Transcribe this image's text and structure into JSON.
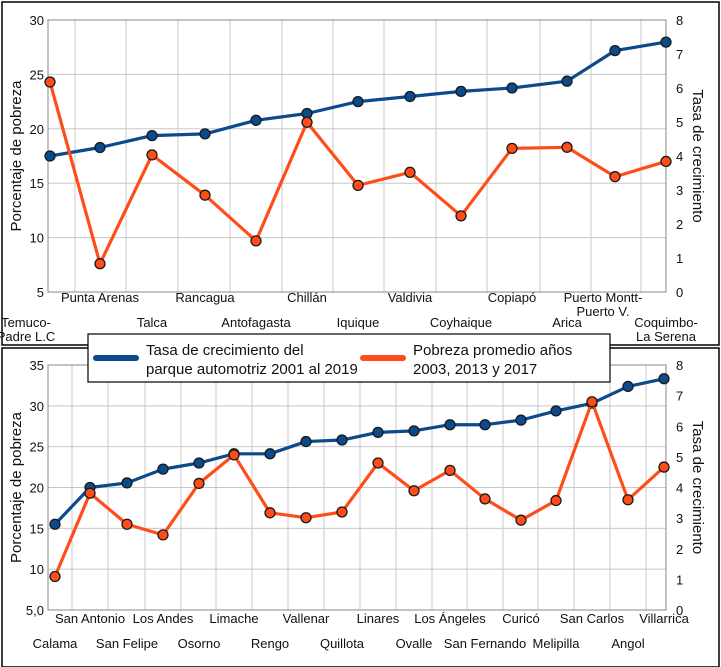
{
  "colors": {
    "growth": "#0b4a8b",
    "poverty": "#ff4d1a",
    "grid": "#c8c8c8",
    "frame": "#000000"
  },
  "legend": {
    "placement": "center-middle",
    "items": [
      {
        "label_line1": "Tasa de crecimiento del",
        "label_line2": "parque automotriz 2001 al 2019",
        "color": "#0b4a8b"
      },
      {
        "label_line1": "Pobreza promedio años",
        "label_line2": "2003, 2013 y 2017",
        "color": "#ff4d1a"
      }
    ]
  },
  "chart_data": [
    {
      "type": "line",
      "ylabel": "Porcentaje de pobreza",
      "ylabel_right": "Tasa de crecimiento",
      "ylim": [
        5,
        30
      ],
      "yticks": [
        "5",
        "10",
        "15",
        "20",
        "25",
        "30"
      ],
      "ylim_right": [
        0,
        8
      ],
      "yticks_right": [
        "0",
        "1",
        "2",
        "3",
        "4",
        "5",
        "6",
        "7",
        "8"
      ],
      "grid": true,
      "categories": [
        "Temuco-Padre L.C.",
        "Punta Arenas",
        "Talca",
        "Rancagua",
        "Antofagasta",
        "Chillán",
        "Iquique",
        "Valdivia",
        "Coyhaique",
        "Copiapó",
        "Arica",
        "Puerto Montt-Puerto V.",
        "Coquimbo-La Serena"
      ],
      "category_labels": [
        {
          "lines": [
            "Temuco-",
            "Padre L.C"
          ]
        },
        {
          "lines": [
            "Punta Arenas"
          ]
        },
        {
          "lines": [
            "Talca"
          ]
        },
        {
          "lines": [
            "Rancagua"
          ]
        },
        {
          "lines": [
            "Antofagasta"
          ]
        },
        {
          "lines": [
            "Chillán"
          ]
        },
        {
          "lines": [
            "Iquique"
          ]
        },
        {
          "lines": [
            "Valdivia"
          ]
        },
        {
          "lines": [
            "Coyhaique"
          ]
        },
        {
          "lines": [
            "Copiapó"
          ]
        },
        {
          "lines": [
            "Arica"
          ]
        },
        {
          "lines": [
            "Puerto Montt-",
            "Puerto V."
          ]
        },
        {
          "lines": [
            "Coquimbo-",
            "La Serena"
          ]
        }
      ],
      "series": [
        {
          "name": "Tasa de crecimiento del parque automotriz 2001 al 2019",
          "axis": "right",
          "values": [
            4.0,
            4.25,
            4.6,
            4.65,
            5.05,
            5.25,
            5.6,
            5.75,
            5.9,
            6.0,
            6.2,
            7.1,
            7.35
          ]
        },
        {
          "name": "Pobreza promedio años 2003, 2013 y 2017",
          "axis": "left",
          "values": [
            24.3,
            7.6,
            17.6,
            13.9,
            9.7,
            20.6,
            14.8,
            16.0,
            12.0,
            18.2,
            18.3,
            15.6,
            17.0
          ]
        }
      ]
    },
    {
      "type": "line",
      "ylabel": "Porcentaje de pobreza",
      "ylabel_right": "Tasa de crecimiento",
      "ylim": [
        5,
        35
      ],
      "yticks": [
        "5,0",
        "10",
        "15",
        "20",
        "25",
        "30",
        "35"
      ],
      "ylim_right": [
        0,
        8
      ],
      "yticks_right": [
        "0",
        "1",
        "2",
        "3",
        "4",
        "5",
        "6",
        "7",
        "8"
      ],
      "grid": true,
      "categories": [
        "Calama",
        "San Antonio",
        "San Felipe",
        "Los Andes",
        "Osorno",
        "Limache",
        "Rengo",
        "Vallenar",
        "Quillota",
        "Linares",
        "Ovalle",
        "Los Ángeles",
        "San Fernando",
        "Curicó",
        "Melipilla",
        "San Carlos",
        "Angol",
        "Villarrica"
      ],
      "category_labels": [
        {
          "lines": [
            "Calama"
          ]
        },
        {
          "lines": [
            "San Antonio"
          ]
        },
        {
          "lines": [
            "San Felipe"
          ]
        },
        {
          "lines": [
            "Los Andes"
          ]
        },
        {
          "lines": [
            "Osorno"
          ]
        },
        {
          "lines": [
            "Limache"
          ]
        },
        {
          "lines": [
            "Rengo"
          ]
        },
        {
          "lines": [
            "Vallenar"
          ]
        },
        {
          "lines": [
            "Quillota"
          ]
        },
        {
          "lines": [
            "Linares"
          ]
        },
        {
          "lines": [
            "Ovalle"
          ]
        },
        {
          "lines": [
            "Los Ángeles"
          ]
        },
        {
          "lines": [
            "San Fernando"
          ]
        },
        {
          "lines": [
            "Curicó"
          ]
        },
        {
          "lines": [
            "Melipilla"
          ]
        },
        {
          "lines": [
            "San Carlos"
          ]
        },
        {
          "lines": [
            "Angol"
          ]
        },
        {
          "lines": [
            "Villarrica"
          ]
        }
      ],
      "series": [
        {
          "name": "Tasa de crecimiento del parque automotriz 2001 al 2019",
          "axis": "right",
          "values": [
            2.8,
            4.0,
            4.15,
            4.6,
            4.8,
            5.1,
            5.1,
            5.5,
            5.55,
            5.8,
            5.85,
            6.05,
            6.05,
            6.2,
            6.5,
            6.75,
            7.3,
            7.55
          ]
        },
        {
          "name": "Pobreza promedio años 2003, 2013 y 2017",
          "axis": "left",
          "values": [
            9.1,
            19.3,
            15.5,
            14.2,
            20.5,
            24.0,
            16.9,
            16.3,
            17.0,
            23.0,
            19.6,
            22.1,
            18.6,
            16.0,
            18.4,
            30.5,
            18.5,
            22.5
          ]
        }
      ]
    }
  ]
}
